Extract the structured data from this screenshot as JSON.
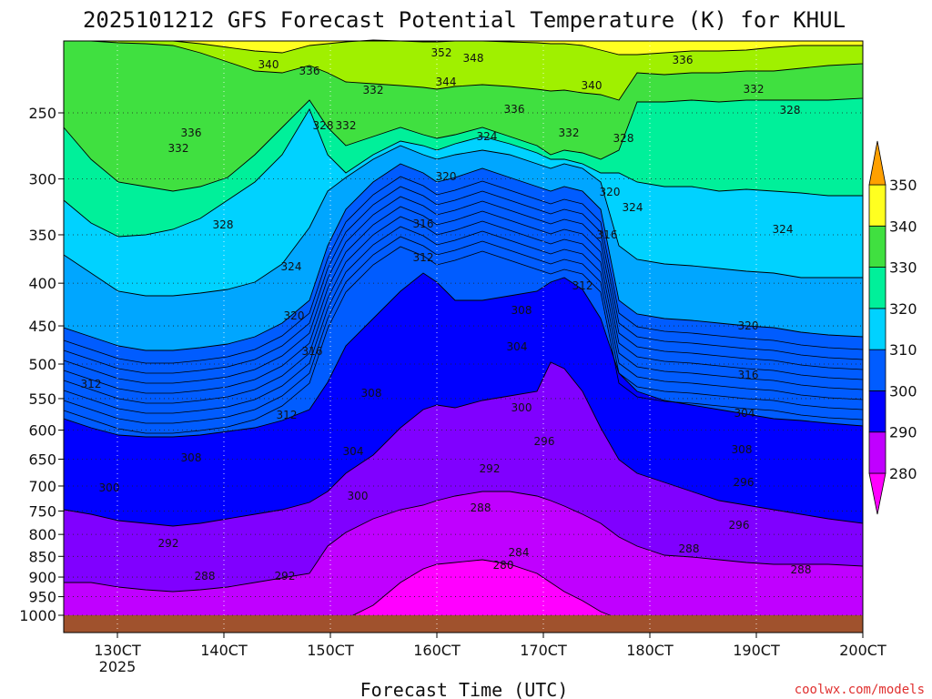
{
  "title": "2025101212 GFS Forecast Potential Temperature (K) for KHUL",
  "credit": "coolwx.com/models",
  "colors": {
    "ground": "#a0522d",
    "bands": [
      "#ff00ff",
      "#c000ff",
      "#8000ff",
      "#0000ff",
      "#005cff",
      "#00a6ff",
      "#00d2ff",
      "#00f09a",
      "#40e040",
      "#a0f000",
      "#ffff20",
      "#ffa000"
    ],
    "credit": "#e0302f"
  },
  "chart_data": {
    "type": "heatmap",
    "title": "2025101212 GFS Forecast Potential Temperature (K) for KHUL",
    "xlabel": "Forecast Time (UTC)",
    "ylabel": "",
    "x_ticks": [
      "130CT",
      "140CT",
      "150CT",
      "160CT",
      "170CT",
      "180CT",
      "190CT",
      "200CT"
    ],
    "x_tick_sub": "2025",
    "y_ticks": [
      250,
      300,
      350,
      400,
      450,
      500,
      550,
      600,
      650,
      700,
      750,
      800,
      850,
      900,
      950,
      1000
    ],
    "y_range": [
      200,
      1013
    ],
    "grid": true,
    "colorbar": {
      "ticks": [
        280,
        290,
        300,
        310,
        320,
        330,
        340,
        350
      ],
      "colors": [
        "#ff00ff",
        "#c000ff",
        "#8000ff",
        "#0000ff",
        "#005cff",
        "#00a6ff",
        "#00d2ff",
        "#00f09a",
        "#40e040",
        "#a0f000",
        "#ffff20",
        "#ffa000"
      ]
    },
    "contour_labels": [
      "352",
      "348",
      "344",
      "340",
      "336",
      "336",
      "332",
      "332",
      "340",
      "336",
      "332",
      "328",
      "332",
      "328",
      "336",
      "324",
      "332",
      "328",
      "320",
      "320",
      "324",
      "328",
      "324",
      "316",
      "324",
      "312",
      "320",
      "316",
      "312",
      "316",
      "320",
      "308",
      "304",
      "316",
      "312",
      "308",
      "300",
      "312",
      "308",
      "304",
      "296",
      "308",
      "304",
      "292",
      "300",
      "296",
      "300",
      "288",
      "296",
      "292",
      "288",
      "284",
      "280",
      "292",
      "288",
      "288"
    ]
  }
}
